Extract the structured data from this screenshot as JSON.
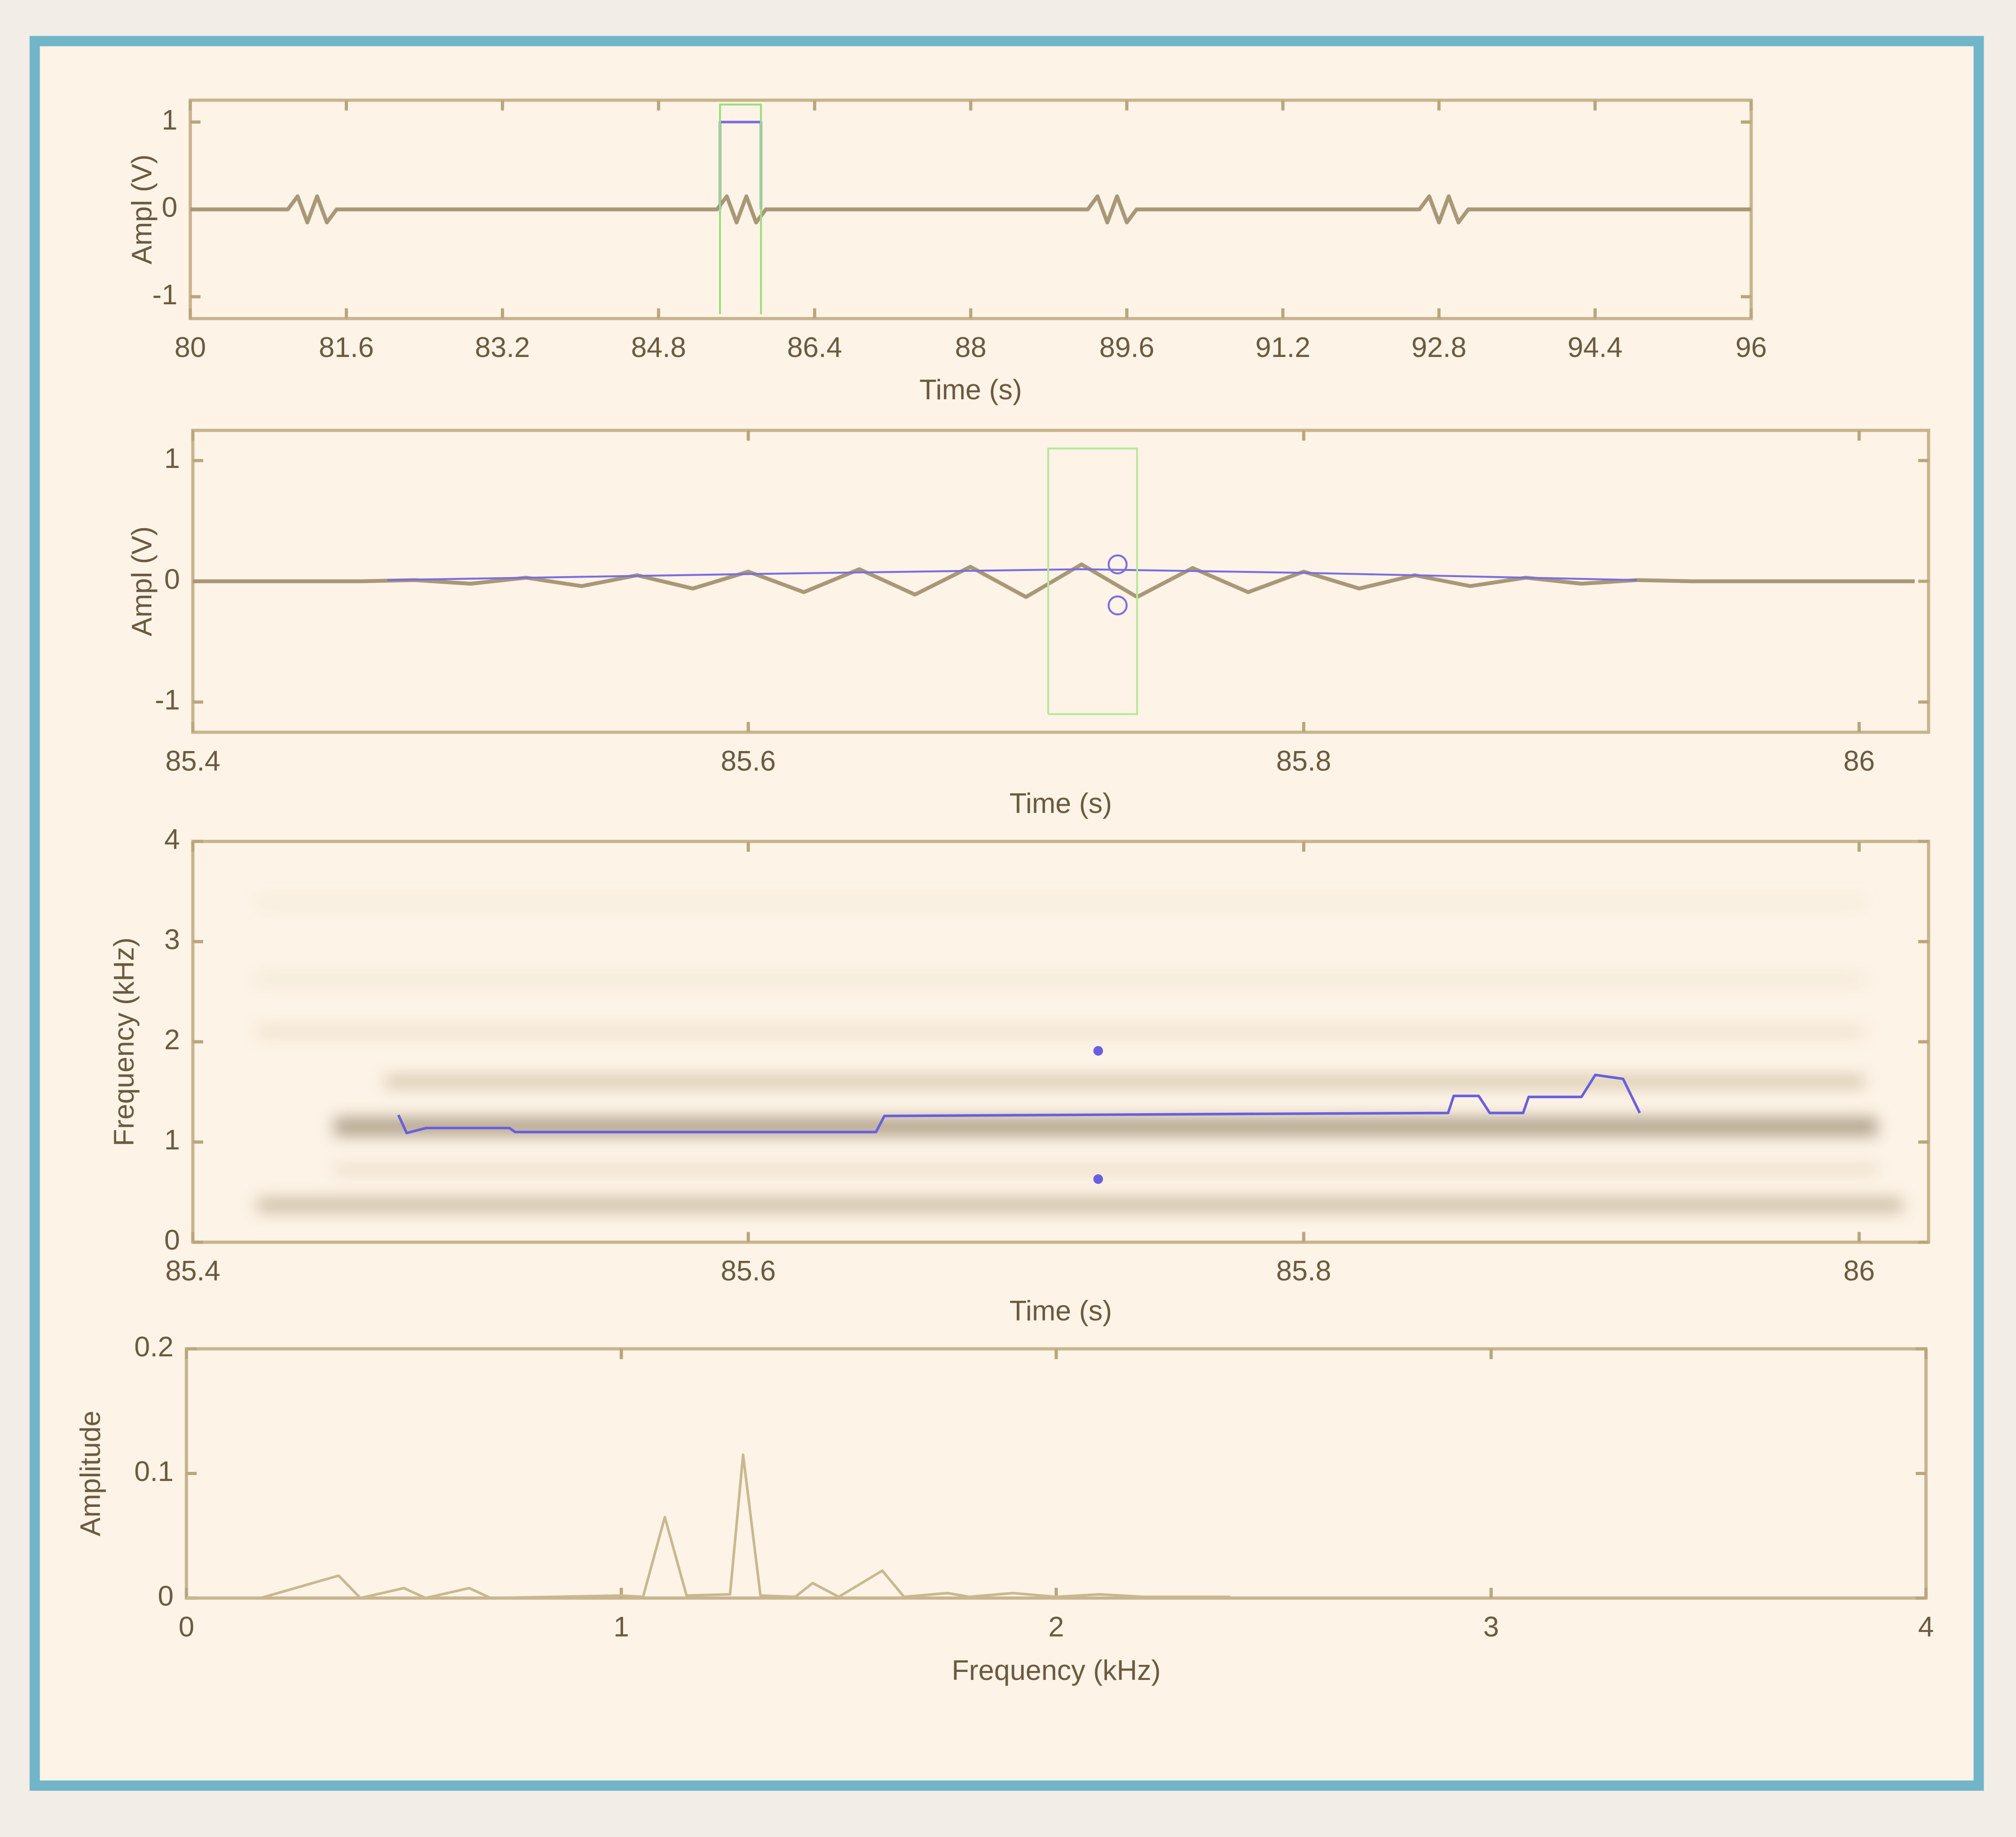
{
  "chart_data": [
    {
      "type": "line",
      "xlabel": "Time (s)",
      "ylabel": "Ampl (V)",
      "xlim": [
        80,
        96
      ],
      "xticks": [
        80,
        81.6,
        83.2,
        84.8,
        86.4,
        88,
        89.6,
        91.2,
        92.8,
        94.4,
        96
      ],
      "ylim": [
        -1.25,
        1.25
      ],
      "yticks": [
        -1,
        0,
        1
      ],
      "series": [
        {
          "color": "#a89878",
          "line_width": 3,
          "x": [
            80,
            81.0,
            81.1,
            81.2,
            81.3,
            81.4,
            81.5,
            85.4,
            85.5,
            85.6,
            85.7,
            85.8,
            85.9,
            89.2,
            89.3,
            89.4,
            89.5,
            89.6,
            89.7,
            92.6,
            92.7,
            92.8,
            92.9,
            93.0,
            93.1,
            96
          ],
          "values": [
            0,
            0,
            0.15,
            -0.15,
            0.15,
            -0.15,
            0,
            0,
            0.15,
            -0.15,
            0.15,
            -0.15,
            0,
            0,
            0.15,
            -0.15,
            0.15,
            -0.15,
            0,
            0,
            0.15,
            -0.15,
            0.15,
            -0.15,
            0,
            0
          ]
        },
        {
          "color": "#7a6ee0",
          "line_width": 2,
          "x": [
            85.43,
            85.43,
            85.85,
            85.85
          ],
          "values": [
            0,
            1,
            1,
            0
          ]
        },
        {
          "color": "#9ae07a",
          "line_width": 1.5,
          "x": [
            85.43,
            85.43,
            85.85,
            85.85
          ],
          "values": [
            -1.2,
            1.2,
            1.2,
            -1.2
          ]
        }
      ]
    },
    {
      "type": "line",
      "xlabel": "Time (s)",
      "ylabel": "Ampl (V)",
      "xlim": [
        85.4,
        86.025
      ],
      "xticks": [
        85.4,
        85.6,
        85.8,
        86
      ],
      "ylim": [
        -1.25,
        1.25
      ],
      "yticks": [
        -1,
        0,
        1
      ],
      "series": [
        {
          "color": "#a89878",
          "line_width": 3,
          "x": [
            85.4,
            85.46,
            85.48,
            85.5,
            85.52,
            85.54,
            85.56,
            85.58,
            85.6,
            85.62,
            85.64,
            85.66,
            85.68,
            85.7,
            85.72,
            85.74,
            85.76,
            85.78,
            85.8,
            85.82,
            85.84,
            85.86,
            85.88,
            85.9,
            85.92,
            85.94,
            86.02
          ],
          "values": [
            0,
            0,
            0.01,
            -0.02,
            0.03,
            -0.04,
            0.05,
            -0.06,
            0.08,
            -0.09,
            0.1,
            -0.11,
            0.12,
            -0.13,
            0.14,
            -0.13,
            0.11,
            -0.09,
            0.08,
            -0.06,
            0.05,
            -0.04,
            0.03,
            -0.02,
            0.01,
            0,
            0
          ]
        },
        {
          "color": "#7a6ee0",
          "line_width": 1.5,
          "x": [
            85.47,
            85.6,
            85.72,
            85.8,
            85.92
          ],
          "values": [
            0.01,
            0.06,
            0.1,
            0.07,
            0.01
          ]
        },
        {
          "color": "#7a6ee0",
          "marker": "circle",
          "x": [
            85.733,
            85.733
          ],
          "values": [
            0.14,
            -0.2
          ]
        },
        {
          "color": "#b8e89a",
          "line_width": 1.5,
          "x": [
            85.708,
            85.708,
            85.74,
            85.74,
            85.708
          ],
          "values": [
            -1.1,
            1.1,
            1.1,
            -1.1,
            -1.1
          ]
        }
      ]
    },
    {
      "type": "line",
      "xlabel": "Time (s)",
      "ylabel": "Frequency (kHz)",
      "xlim": [
        85.4,
        86.025
      ],
      "xticks": [
        85.4,
        85.6,
        85.8,
        86
      ],
      "ylim": [
        0,
        4
      ],
      "yticks": [
        0,
        1,
        2,
        3,
        4
      ],
      "series": [
        {
          "color": "#6a5ee0",
          "line_width": 2,
          "x": [
            85.474,
            85.477,
            85.484,
            85.514,
            85.516,
            85.646,
            85.649,
            85.775,
            85.852,
            85.854,
            85.863,
            85.867,
            85.879,
            85.881,
            85.9,
            85.905,
            85.915,
            85.921
          ],
          "values": [
            1.27,
            1.09,
            1.14,
            1.14,
            1.1,
            1.1,
            1.26,
            1.28,
            1.29,
            1.46,
            1.46,
            1.29,
            1.29,
            1.45,
            1.45,
            1.67,
            1.63,
            1.29
          ]
        },
        {
          "color": "#6a5ee0",
          "marker": "dot",
          "x": [
            85.726,
            85.726
          ],
          "values": [
            1.91,
            0.63
          ]
        }
      ]
    },
    {
      "type": "line",
      "xlabel": "Frequency (kHz)",
      "ylabel": "Amplitude",
      "xlim": [
        0,
        4
      ],
      "xticks": [
        0,
        1,
        2,
        3,
        4
      ],
      "ylim": [
        0,
        0.2
      ],
      "yticks": [
        0,
        0.1,
        0.2
      ],
      "series": [
        {
          "color": "#c8b890",
          "line_width": 2,
          "x": [
            0,
            0.17,
            0.35,
            0.4,
            0.5,
            0.55,
            0.65,
            0.7,
            1.0,
            1.05,
            1.1,
            1.15,
            1.25,
            1.28,
            1.32,
            1.4,
            1.44,
            1.5,
            1.6,
            1.65,
            1.75,
            1.8,
            1.9,
            2.0,
            2.1,
            2.2,
            2.4
          ],
          "values": [
            0,
            0,
            0.018,
            0,
            0.008,
            0,
            0.008,
            0,
            0.002,
            0.001,
            0.065,
            0.002,
            0.003,
            0.115,
            0.002,
            0.001,
            0.012,
            0.001,
            0.022,
            0.001,
            0.004,
            0.001,
            0.004,
            0.001,
            0.003,
            0.001,
            0.001
          ]
        }
      ]
    }
  ]
}
